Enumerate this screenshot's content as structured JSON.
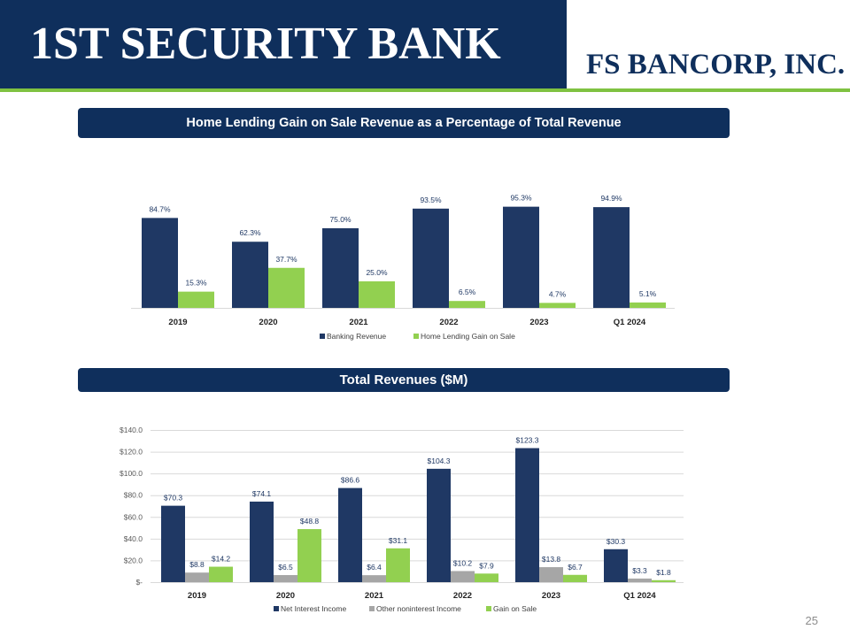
{
  "header": {
    "bank_name": "1ST SECURITY BANK",
    "corp_name": "FS BANCORP, INC."
  },
  "section1_title": "Home Lending Gain on Sale Revenue as a Percentage of Total Revenue",
  "section2_title": "Total Revenues ($M)",
  "page_number": "25",
  "colors": {
    "navy": "#1f3864",
    "green": "#92d050",
    "gray": "#a6a6a6",
    "header": "#0f2f5c",
    "stripe": "#7fc241"
  },
  "chart_data": [
    {
      "type": "bar",
      "categories": [
        "2019",
        "2020",
        "2021",
        "2022",
        "2023",
        "Q1 2024"
      ],
      "series": [
        {
          "name": "Banking Revenue",
          "values": [
            84.7,
            62.3,
            75.0,
            93.5,
            95.3,
            94.9
          ],
          "labels": [
            "84.7%",
            "62.3%",
            "75.0%",
            "93.5%",
            "95.3%",
            "94.9%"
          ],
          "color": "#1f3864"
        },
        {
          "name": "Home Lending Gain on Sale",
          "values": [
            15.3,
            37.7,
            25.0,
            6.5,
            4.7,
            5.1
          ],
          "labels": [
            "15.3%",
            "37.7%",
            "25.0%",
            "6.5%",
            "4.7%",
            "5.1%"
          ],
          "color": "#92d050"
        }
      ],
      "ylim": [
        0,
        100
      ],
      "legend": "bottom"
    },
    {
      "type": "bar",
      "categories": [
        "2019",
        "2020",
        "2021",
        "2022",
        "2023",
        "Q1 2024"
      ],
      "series": [
        {
          "name": "Net Interest Income",
          "values": [
            70.3,
            74.1,
            86.6,
            104.3,
            123.3,
            30.3
          ],
          "labels": [
            "$70.3",
            "$74.1",
            "$86.6",
            "$104.3",
            "$123.3",
            "$30.3"
          ],
          "color": "#1f3864"
        },
        {
          "name": "Other noninterest Income",
          "values": [
            8.8,
            6.5,
            6.4,
            10.2,
            13.8,
            3.3
          ],
          "labels": [
            "$8.8",
            "$6.5",
            "$6.4",
            "$10.2",
            "$13.8",
            "$3.3"
          ],
          "color": "#a6a6a6"
        },
        {
          "name": "Gain on Sale",
          "values": [
            14.2,
            48.8,
            31.1,
            7.9,
            6.7,
            1.8
          ],
          "labels": [
            "$14.2",
            "$48.8",
            "$31.1",
            "$7.9",
            "$6.7",
            "$1.8"
          ],
          "color": "#92d050"
        }
      ],
      "yticks": [
        "$-",
        "$20.0",
        "$40.0",
        "$60.0",
        "$80.0",
        "$100.0",
        "$120.0",
        "$140.0"
      ],
      "ylim": [
        0,
        140
      ],
      "grid": true,
      "legend": "bottom"
    }
  ]
}
